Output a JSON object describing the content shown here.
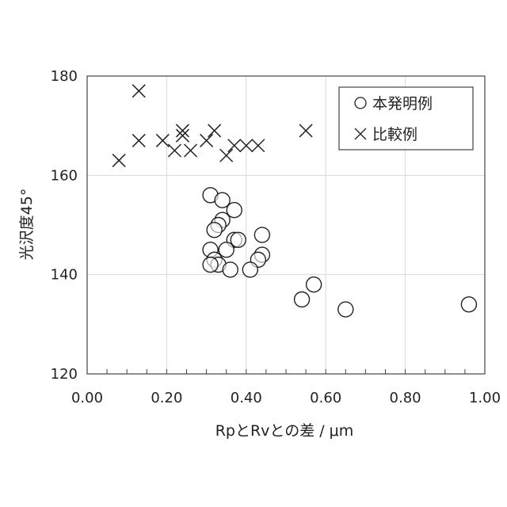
{
  "chart_data": {
    "type": "scatter",
    "xlabel": "RpとRvとの差 / μm",
    "ylabel": "光沢度45°",
    "xlim": [
      0,
      1.0
    ],
    "ylim": [
      120,
      180
    ],
    "x_ticks": [
      "0.00",
      "0.20",
      "0.40",
      "0.60",
      "0.80",
      "1.00"
    ],
    "y_ticks": [
      "120",
      "140",
      "160",
      "180"
    ],
    "grid": true,
    "legend_position": "top-right",
    "series": [
      {
        "name": "本発明例",
        "marker": "circle",
        "points": [
          [
            0.31,
            156
          ],
          [
            0.34,
            155
          ],
          [
            0.37,
            153
          ],
          [
            0.34,
            151
          ],
          [
            0.33,
            150
          ],
          [
            0.32,
            149
          ],
          [
            0.44,
            148
          ],
          [
            0.37,
            147
          ],
          [
            0.38,
            147
          ],
          [
            0.31,
            145
          ],
          [
            0.35,
            145
          ],
          [
            0.44,
            144
          ],
          [
            0.43,
            143
          ],
          [
            0.32,
            143
          ],
          [
            0.33,
            142
          ],
          [
            0.31,
            142
          ],
          [
            0.36,
            141
          ],
          [
            0.41,
            141
          ],
          [
            0.57,
            138
          ],
          [
            0.54,
            135
          ],
          [
            0.65,
            133
          ],
          [
            0.96,
            134
          ]
        ]
      },
      {
        "name": "比較例",
        "marker": "x",
        "points": [
          [
            0.13,
            177
          ],
          [
            0.24,
            169
          ],
          [
            0.32,
            169
          ],
          [
            0.55,
            169
          ],
          [
            0.24,
            168
          ],
          [
            0.13,
            167
          ],
          [
            0.19,
            167
          ],
          [
            0.3,
            167
          ],
          [
            0.4,
            166
          ],
          [
            0.37,
            166
          ],
          [
            0.43,
            166
          ],
          [
            0.22,
            165
          ],
          [
            0.26,
            165
          ],
          [
            0.35,
            164
          ],
          [
            0.08,
            163
          ]
        ]
      }
    ]
  }
}
